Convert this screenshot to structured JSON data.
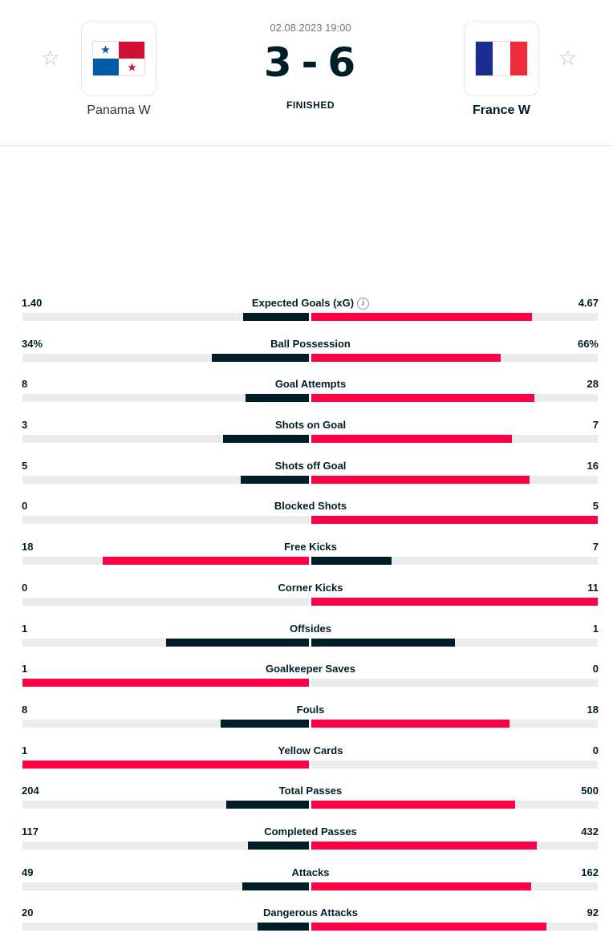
{
  "match": {
    "datetime": "02.08.2023 19:00",
    "status": "FINISHED",
    "home": {
      "name": "Panama W",
      "score": "3"
    },
    "away": {
      "name": "France W",
      "score": "6"
    },
    "separator": "-"
  },
  "colors": {
    "winner": "#ff0046",
    "loser": "#001e28",
    "track": "#e9ebed"
  },
  "icons": {
    "favorite": "star-outline-icon",
    "info": "info-icon"
  },
  "stats": [
    {
      "label": "Expected Goals (xG)",
      "home": "1.40",
      "away": "4.67",
      "home_num": 1.4,
      "away_num": 4.67,
      "info": true
    },
    {
      "label": "Ball Possession",
      "home": "34%",
      "away": "66%",
      "home_num": 34,
      "away_num": 66
    },
    {
      "label": "Goal Attempts",
      "home": "8",
      "away": "28",
      "home_num": 8,
      "away_num": 28
    },
    {
      "label": "Shots on Goal",
      "home": "3",
      "away": "7",
      "home_num": 3,
      "away_num": 7
    },
    {
      "label": "Shots off Goal",
      "home": "5",
      "away": "16",
      "home_num": 5,
      "away_num": 16
    },
    {
      "label": "Blocked Shots",
      "home": "0",
      "away": "5",
      "home_num": 0,
      "away_num": 5
    },
    {
      "label": "Free Kicks",
      "home": "18",
      "away": "7",
      "home_num": 18,
      "away_num": 7
    },
    {
      "label": "Corner Kicks",
      "home": "0",
      "away": "11",
      "home_num": 0,
      "away_num": 11
    },
    {
      "label": "Offsides",
      "home": "1",
      "away": "1",
      "home_num": 1,
      "away_num": 1
    },
    {
      "label": "Goalkeeper Saves",
      "home": "1",
      "away": "0",
      "home_num": 1,
      "away_num": 0
    },
    {
      "label": "Fouls",
      "home": "8",
      "away": "18",
      "home_num": 8,
      "away_num": 18
    },
    {
      "label": "Yellow Cards",
      "home": "1",
      "away": "0",
      "home_num": 1,
      "away_num": 0
    },
    {
      "label": "Total Passes",
      "home": "204",
      "away": "500",
      "home_num": 204,
      "away_num": 500
    },
    {
      "label": "Completed Passes",
      "home": "117",
      "away": "432",
      "home_num": 117,
      "away_num": 432
    },
    {
      "label": "Attacks",
      "home": "49",
      "away": "162",
      "home_num": 49,
      "away_num": 162
    },
    {
      "label": "Dangerous Attacks",
      "home": "20",
      "away": "92",
      "home_num": 20,
      "away_num": 92
    }
  ]
}
